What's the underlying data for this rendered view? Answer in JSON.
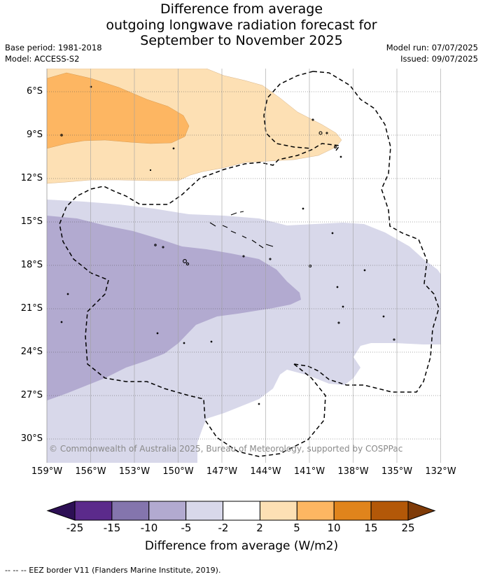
{
  "title": {
    "line1": "Difference from average",
    "line2": "outgoing longwave radiation forecast for",
    "line3": "September to November 2025"
  },
  "meta": {
    "base_period": "Base period: 1981-2018",
    "model": "Model: ACCESS-S2",
    "model_run": "Model run: 07/07/2025",
    "issued": "Issued: 09/07/2025"
  },
  "map": {
    "lat_labels": [
      "6°S",
      "9°S",
      "12°S",
      "15°S",
      "18°S",
      "21°S",
      "24°S",
      "27°S",
      "30°S"
    ],
    "lon_labels": [
      "159°W",
      "156°W",
      "153°W",
      "150°W",
      "147°W",
      "144°W",
      "141°W",
      "138°W",
      "135°W",
      "132°W"
    ],
    "copyright": "© Commonwealth of Australia 2025, Bureau of Meteorology, supported by COSPPac"
  },
  "colorbar": {
    "ticks": [
      "-25",
      "-15",
      "-10",
      "-5",
      "-2",
      "2",
      "5",
      "10",
      "15",
      "25"
    ],
    "colors": [
      "#2d0f55",
      "#5b2a8b",
      "#8475ad",
      "#b2aad0",
      "#d8d8ea",
      "#ffffff",
      "#fde0b4",
      "#fdb662",
      "#e0841c",
      "#b35808",
      "#7f3b08"
    ],
    "label": "Difference from average (W/m2)"
  },
  "footer": {
    "legend": "--  --  -- EEZ border V11 (Flanders Marine Institute, 2019)."
  },
  "colors": {
    "light_orange": "#fde0b4",
    "orange": "#fdb662",
    "light_purple": "#d8d8ea",
    "purple": "#b2aad0"
  }
}
